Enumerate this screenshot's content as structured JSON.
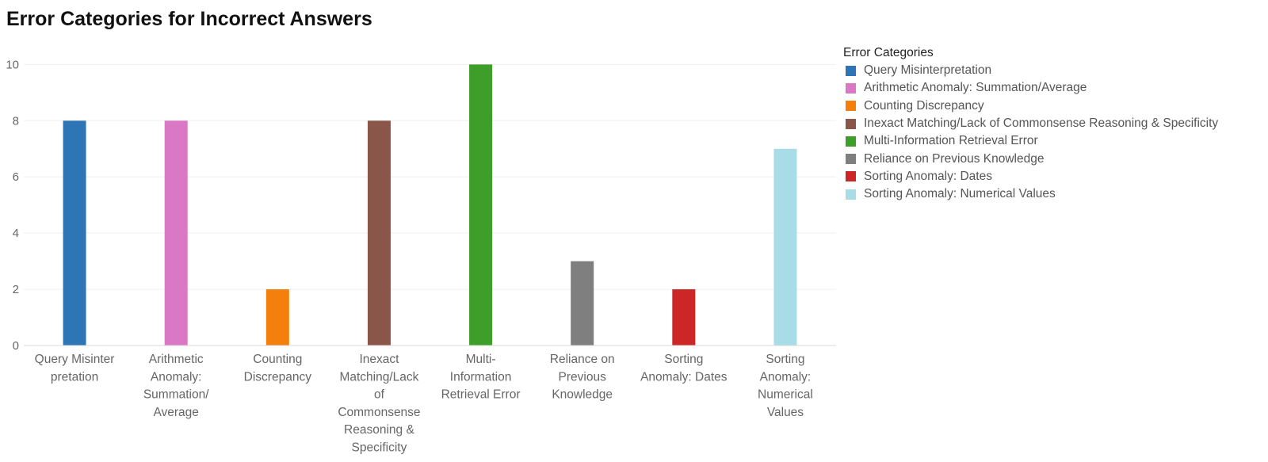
{
  "chart_data": {
    "type": "bar",
    "title": "Error Categories for Incorrect Answers",
    "xlabel": "",
    "ylabel": "",
    "ylim": [
      0,
      10.8
    ],
    "yticks": [
      0,
      2,
      4,
      6,
      8,
      10
    ],
    "grid": true,
    "legend_position": "right",
    "legend_title": "Error Categories",
    "categories": [
      "Query Misinterpretation",
      "Arithmetic Anomaly: Summation/Average",
      "Counting Discrepancy",
      "Inexact Matching/Lack of Commonsense Reasoning & Specificity",
      "Multi-Information Retrieval Error",
      "Reliance on Previous Knowledge",
      "Sorting Anomaly: Dates",
      "Sorting Anomaly: Numerical Values"
    ],
    "category_label_lines": [
      [
        "Query Misinter",
        "pretation"
      ],
      [
        "Arithmetic",
        "Anomaly:",
        "Summation/",
        "Average"
      ],
      [
        "Counting",
        "Discrepancy"
      ],
      [
        "Inexact",
        "Matching/Lack",
        "of",
        "Commonsense",
        "Reasoning &",
        "Specificity"
      ],
      [
        "Multi-",
        "Information",
        "Retrieval Error"
      ],
      [
        "Reliance on",
        "Previous",
        "Knowledge"
      ],
      [
        "Sorting",
        "Anomaly: Dates"
      ],
      [
        "Sorting",
        "Anomaly:",
        "Numerical",
        "Values"
      ]
    ],
    "values": [
      8,
      8,
      2,
      8,
      10,
      3,
      2,
      7
    ],
    "colors": [
      "#2e75b6",
      "#db78c6",
      "#f57f0c",
      "#8a564a",
      "#3d9e2a",
      "#7f7f7f",
      "#cc2626",
      "#a8dce6"
    ]
  }
}
